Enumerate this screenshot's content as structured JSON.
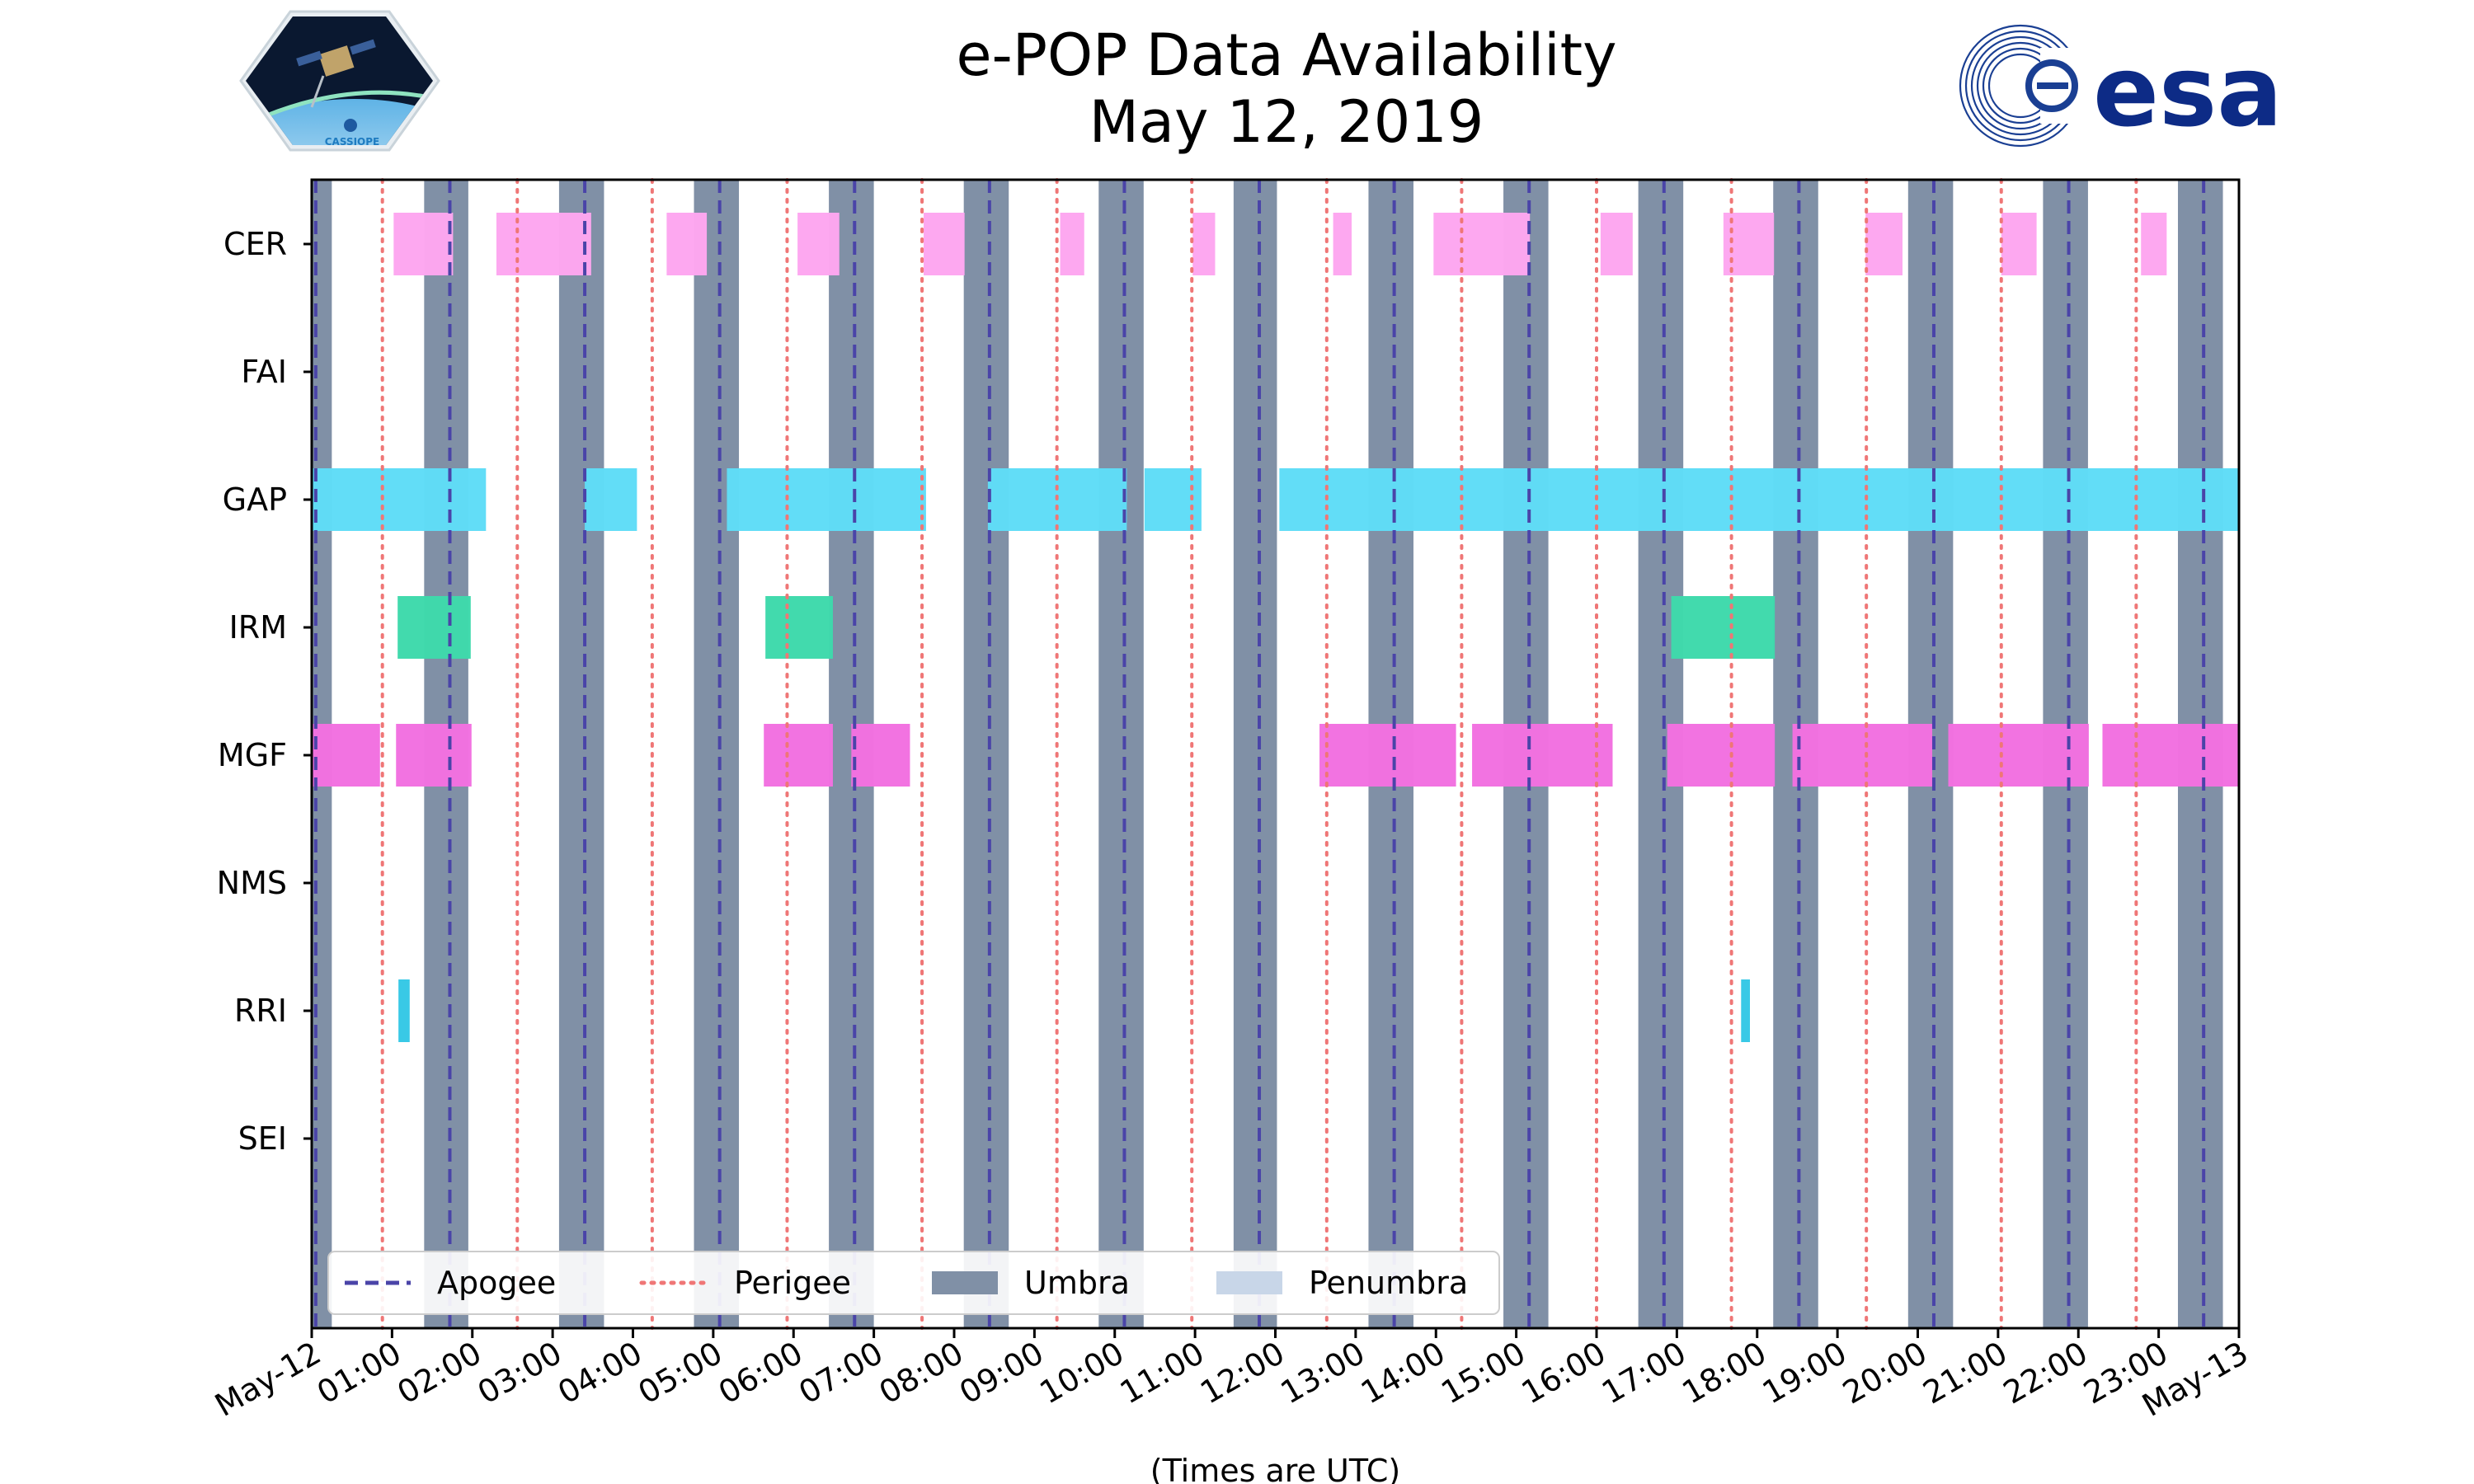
{
  "chart_data": {
    "type": "timeline",
    "title_line1": "e-POP Data Availability",
    "title_line2": "May 12, 2019",
    "xlabel": "(Times are UTC)",
    "x_range_hours": [
      0,
      24
    ],
    "x_ticks": [
      "May-12",
      "01:00",
      "02:00",
      "03:00",
      "04:00",
      "05:00",
      "06:00",
      "07:00",
      "08:00",
      "09:00",
      "10:00",
      "11:00",
      "12:00",
      "13:00",
      "14:00",
      "15:00",
      "16:00",
      "17:00",
      "18:00",
      "19:00",
      "20:00",
      "21:00",
      "22:00",
      "23:00",
      "May-13"
    ],
    "instruments": [
      "CER",
      "FAI",
      "GAP",
      "IRM",
      "MGF",
      "NMS",
      "RRI",
      "SEI"
    ],
    "colors": {
      "CER": "#fda6f0",
      "GAP": "#5fdcf7",
      "IRM": "#3ed9ab",
      "MGF": "#f270e0",
      "RRI": "#35c8e6",
      "umbra": "#8090a6",
      "penumbra": "#c8d6e8",
      "apogee": "#4a44a8",
      "perigee": "#ef7676"
    },
    "availability": {
      "CER": [
        [
          1.02,
          1.76
        ],
        [
          2.3,
          3.48
        ],
        [
          4.42,
          4.92
        ],
        [
          6.05,
          6.57
        ],
        [
          7.62,
          8.13
        ],
        [
          9.32,
          9.62
        ],
        [
          10.97,
          11.25
        ],
        [
          12.72,
          12.95
        ],
        [
          13.97,
          15.17
        ],
        [
          16.05,
          16.45
        ],
        [
          17.58,
          18.21
        ],
        [
          19.35,
          19.81
        ],
        [
          21.04,
          21.48
        ],
        [
          22.78,
          23.1
        ]
      ],
      "FAI": [],
      "GAP": [
        [
          0.0,
          2.17
        ],
        [
          3.4,
          4.05
        ],
        [
          5.17,
          7.65
        ],
        [
          8.42,
          10.15
        ],
        [
          10.37,
          11.08
        ],
        [
          12.05,
          24.0
        ]
      ],
      "IRM": [
        [
          1.07,
          1.98
        ],
        [
          5.65,
          6.49
        ],
        [
          16.93,
          18.22
        ]
      ],
      "MGF": [
        [
          0.0,
          0.85
        ],
        [
          1.05,
          1.99
        ],
        [
          5.63,
          6.49
        ],
        [
          6.72,
          7.45
        ],
        [
          12.55,
          14.25
        ],
        [
          14.45,
          16.2
        ],
        [
          16.88,
          18.22
        ],
        [
          18.44,
          20.18
        ],
        [
          20.38,
          22.13
        ],
        [
          22.3,
          24.0
        ]
      ],
      "NMS": [],
      "RRI": [
        [
          1.08,
          1.22
        ],
        [
          17.8,
          17.91
        ]
      ],
      "SEI": []
    },
    "umbra": [
      [
        0.0,
        0.25
      ],
      [
        1.4,
        1.95
      ],
      [
        3.08,
        3.64
      ],
      [
        4.76,
        5.32
      ],
      [
        6.44,
        7.0
      ],
      [
        8.12,
        8.68
      ],
      [
        9.8,
        10.36
      ],
      [
        11.48,
        12.02
      ],
      [
        13.16,
        13.72
      ],
      [
        14.84,
        15.4
      ],
      [
        16.52,
        17.08
      ],
      [
        18.2,
        18.76
      ],
      [
        19.88,
        20.44
      ],
      [
        21.56,
        22.12
      ],
      [
        23.24,
        23.8
      ]
    ],
    "apogee_hours": [
      0.05,
      1.72,
      3.4,
      5.08,
      6.76,
      8.44,
      10.12,
      11.8,
      13.48,
      15.16,
      16.84,
      18.52,
      20.2,
      21.88,
      23.56
    ],
    "perigee_hours": [
      0.88,
      2.56,
      4.24,
      5.92,
      7.6,
      9.28,
      10.96,
      12.64,
      14.32,
      16.0,
      17.68,
      19.36,
      21.04,
      22.72
    ],
    "legend": [
      {
        "label": "Apogee",
        "style": "dashed",
        "color_key": "apogee"
      },
      {
        "label": "Perigee",
        "style": "dotted",
        "color_key": "perigee"
      },
      {
        "label": "Umbra",
        "style": "patch",
        "color_key": "umbra"
      },
      {
        "label": "Penumbra",
        "style": "patch",
        "color_key": "penumbra"
      }
    ]
  },
  "logos": {
    "left_badge_text": "CASSIOPE",
    "right_text": "esa"
  }
}
